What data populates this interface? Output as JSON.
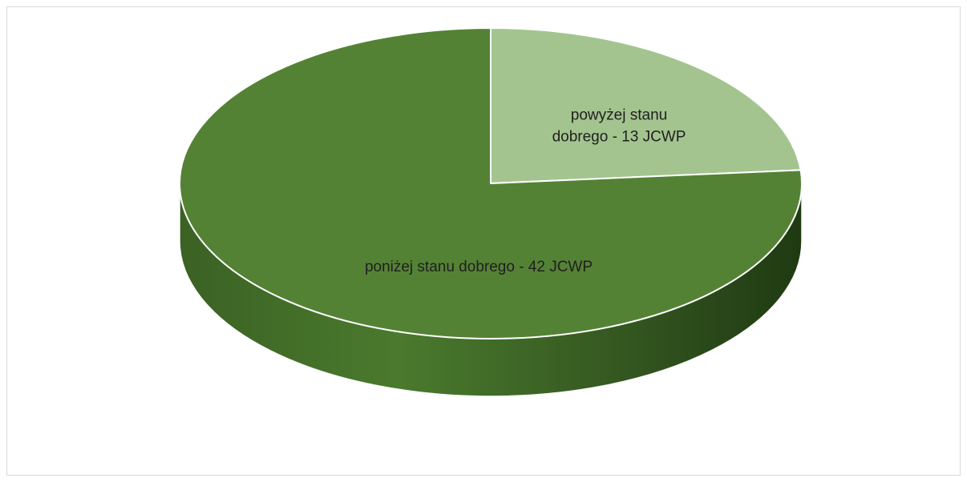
{
  "chart_data": {
    "type": "pie",
    "categories": [
      "powyżej stanu dobrego",
      "poniżej stanu dobrego"
    ],
    "values": [
      13,
      42
    ],
    "labels": [
      [
        "powyżej stanu",
        "dobrego - 13 JCWP"
      ],
      [
        "poniżej stanu dobrego  - 42 JCWP"
      ]
    ],
    "colors": {
      "above": "#a3c48f",
      "below": "#548235",
      "below_side_dark": "#2c4a1a",
      "below_side_light": "#3f6626"
    },
    "style": "3d-pie",
    "legend": "none"
  }
}
